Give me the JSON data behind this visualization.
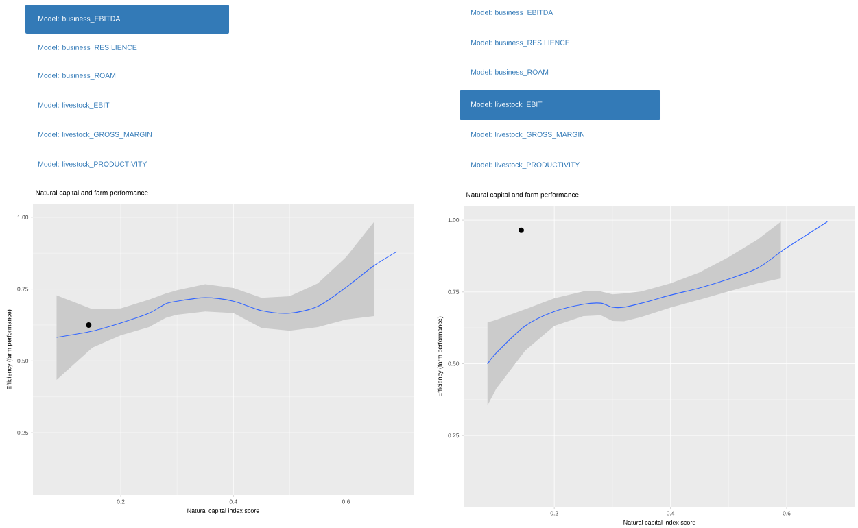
{
  "chart_data": [
    {
      "type": "other",
      "categories": [
        "Model: business_EBITDA",
        "Model: business_RESILIENCE",
        "Model: business_ROAM",
        "Model: livestock_EBIT",
        "Model: livestock_GROSS_MARGIN",
        "Model: livestock_PRODUCTIVITY"
      ],
      "colors": [
        "#337ab7",
        null,
        null,
        null,
        null,
        null
      ]
    },
    {
      "type": "other",
      "categories": [
        "Model: business_EBITDA",
        "Model: business_RESILIENCE",
        "Model: business_ROAM",
        "Model: livestock_EBIT",
        "Model: livestock_GROSS_MARGIN",
        "Model: livestock_PRODUCTIVITY"
      ],
      "colors": [
        null,
        null,
        null,
        "#337ab7",
        null,
        null
      ]
    },
    {
      "type": "line",
      "title": "Natural capital and farm performance",
      "xlabel": "Natural capital index score",
      "ylabel": "Efficiency (farm performance)",
      "xlim": [
        0.044,
        0.72
      ],
      "ylim": [
        0.033,
        1.045
      ],
      "xticks": [
        0.2,
        0.4,
        0.6
      ],
      "yticks": [
        {
          "value": 0.25,
          "label": "0.25"
        },
        {
          "value": 0.5,
          "label": "0.50"
        },
        {
          "value": 0.75,
          "label": "0.75"
        },
        {
          "value": 1,
          "label": "1.00"
        }
      ],
      "grid": true,
      "series": [
        {
          "type": "line",
          "color": "#3366ff",
          "x": [
            0.086,
            0.15,
            0.2,
            0.25,
            0.28,
            0.3,
            0.35,
            0.4,
            0.45,
            0.5,
            0.55,
            0.6,
            0.65,
            0.69
          ],
          "values": [
            0.582,
            0.604,
            0.632,
            0.666,
            0.699,
            0.708,
            0.72,
            0.708,
            0.675,
            0.666,
            0.69,
            0.756,
            0.832,
            0.88
          ],
          "upper": [
            0.728,
            0.68,
            0.683,
            0.713,
            0.735,
            0.746,
            0.767,
            0.754,
            0.72,
            0.725,
            0.77,
            0.861,
            0.985,
            null
          ],
          "lower": [
            0.434,
            0.547,
            0.589,
            0.618,
            0.65,
            0.661,
            0.672,
            0.667,
            0.615,
            0.605,
            0.618,
            0.644,
            0.656,
            null
          ]
        },
        {
          "type": "scatter",
          "color": "#000000",
          "marker": "circle",
          "x": [
            0.143
          ],
          "values": [
            0.625
          ]
        }
      ]
    },
    {
      "type": "line",
      "title": "Natural capital and farm performance",
      "xlabel": "Natural capital index score",
      "ylabel": "Efficiency (farm performance)",
      "xlim": [
        0.044,
        0.718
      ],
      "ylim": [
        0.002,
        1.048
      ],
      "xticks": [
        0.2,
        0.4,
        0.6
      ],
      "yticks": [
        {
          "value": 0.25,
          "label": "0.25"
        },
        {
          "value": 0.5,
          "label": "0.50"
        },
        {
          "value": 0.75,
          "label": "0.75"
        },
        {
          "value": 1,
          "label": "1.00"
        }
      ],
      "grid": true,
      "series": [
        {
          "type": "line",
          "color": "#3366ff",
          "x": [
            0.085,
            0.1,
            0.15,
            0.2,
            0.25,
            0.28,
            0.3,
            0.32,
            0.35,
            0.4,
            0.45,
            0.5,
            0.55,
            0.59,
            0.6,
            0.67
          ],
          "values": [
            0.499,
            0.537,
            0.632,
            0.682,
            0.707,
            0.711,
            0.697,
            0.697,
            0.711,
            0.739,
            0.764,
            0.795,
            0.833,
            0.89,
            0.904,
            0.995
          ],
          "upper": [
            0.644,
            0.653,
            0.69,
            0.728,
            0.752,
            0.752,
            0.742,
            0.745,
            0.752,
            0.78,
            0.818,
            0.871,
            0.933,
            0.995,
            null,
            null
          ],
          "lower": [
            0.355,
            0.413,
            0.546,
            0.632,
            0.666,
            0.669,
            0.649,
            0.648,
            0.663,
            0.696,
            0.723,
            0.752,
            0.78,
            0.797,
            null,
            null
          ]
        },
        {
          "type": "scatter",
          "color": "#000000",
          "marker": "circle",
          "x": [
            0.143
          ],
          "values": [
            0.965
          ]
        }
      ]
    }
  ]
}
